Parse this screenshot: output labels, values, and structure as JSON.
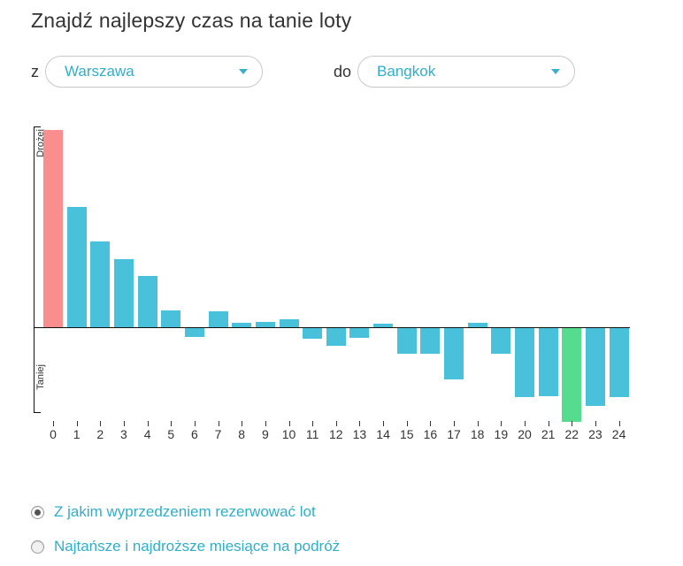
{
  "page": {
    "title": "Znajdź najlepszy czas na tanie loty"
  },
  "route": {
    "from_label": "z",
    "from_value": "Warszawa",
    "to_label": "do",
    "to_value": "Bangkok"
  },
  "chart_data": {
    "type": "bar",
    "title": "",
    "xlabel": "",
    "ylabel": "",
    "axis_top_label": "Drożej",
    "axis_bottom_label": "Taniej",
    "categories": [
      "0",
      "1",
      "2",
      "3",
      "4",
      "5",
      "6",
      "7",
      "8",
      "9",
      "10",
      "11",
      "12",
      "13",
      "14",
      "15",
      "16",
      "17",
      "18",
      "19",
      "20",
      "21",
      "22",
      "23",
      "24"
    ],
    "values": [
      223,
      136,
      97,
      77,
      58,
      19,
      -10,
      18,
      5,
      6,
      9,
      -12,
      -20,
      -11,
      4,
      -29,
      -29,
      -58,
      5,
      -29,
      -78,
      -77,
      -106,
      -88,
      -78
    ],
    "value_range": [
      -110,
      225
    ],
    "max_bar_index": 0,
    "min_bar_index": 22,
    "colors": {
      "default": "#4ac1db",
      "expensive": "#fa8e8e",
      "cheapest": "#55dc8f",
      "axis": "#111111"
    },
    "grid": false,
    "legend": false
  },
  "options": {
    "radios": [
      {
        "label": "Z jakim wyprzedzeniem rezerwować lot",
        "selected": true
      },
      {
        "label": "Najtańsze i najdroższe miesiące na podróż",
        "selected": false
      }
    ]
  },
  "accent_colors": {
    "teal_text": "#31aec8"
  }
}
